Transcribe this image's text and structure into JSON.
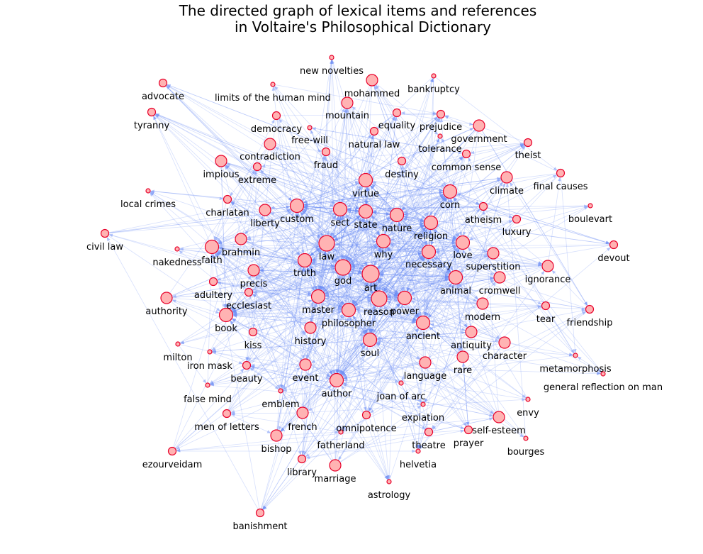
{
  "title": {
    "line1": "The directed graph of lexical items and references",
    "line2": "in Voltaire's Philosophical Dictionary"
  },
  "colors": {
    "node_fill": "#ffb3b3",
    "node_stroke": "#e8002a",
    "edge": "#6f8ff5",
    "label": "#000000",
    "background": "#ffffff"
  },
  "nodes": [
    {
      "id": "new novelties",
      "weight": 1
    },
    {
      "id": "mohammed",
      "weight": 3
    },
    {
      "id": "bankruptcy",
      "weight": 1
    },
    {
      "id": "advocate",
      "weight": 2
    },
    {
      "id": "limits of the human mind",
      "weight": 1
    },
    {
      "id": "mountain",
      "weight": 3
    },
    {
      "id": "tyranny",
      "weight": 2
    },
    {
      "id": "democracy",
      "weight": 2
    },
    {
      "id": "equality",
      "weight": 2
    },
    {
      "id": "prejudice",
      "weight": 2
    },
    {
      "id": "government",
      "weight": 3
    },
    {
      "id": "free-will",
      "weight": 1
    },
    {
      "id": "natural law",
      "weight": 2
    },
    {
      "id": "tolerance",
      "weight": 1
    },
    {
      "id": "theist",
      "weight": 2
    },
    {
      "id": "contradiction",
      "weight": 3
    },
    {
      "id": "fraud",
      "weight": 2
    },
    {
      "id": "common sense",
      "weight": 2
    },
    {
      "id": "impious",
      "weight": 3
    },
    {
      "id": "extreme",
      "weight": 2
    },
    {
      "id": "destiny",
      "weight": 2
    },
    {
      "id": "virtue",
      "weight": 4
    },
    {
      "id": "climate",
      "weight": 3
    },
    {
      "id": "final causes",
      "weight": 2
    },
    {
      "id": "local crimes",
      "weight": 1
    },
    {
      "id": "corn",
      "weight": 4
    },
    {
      "id": "charlatan",
      "weight": 2
    },
    {
      "id": "custom",
      "weight": 4
    },
    {
      "id": "sect",
      "weight": 4
    },
    {
      "id": "state",
      "weight": 4
    },
    {
      "id": "atheism",
      "weight": 2
    },
    {
      "id": "boulevart",
      "weight": 1
    },
    {
      "id": "liberty",
      "weight": 3
    },
    {
      "id": "nature",
      "weight": 4
    },
    {
      "id": "luxury",
      "weight": 2
    },
    {
      "id": "religion",
      "weight": 4
    },
    {
      "id": "civil law",
      "weight": 2
    },
    {
      "id": "brahmin",
      "weight": 3
    },
    {
      "id": "law",
      "weight": 5
    },
    {
      "id": "why",
      "weight": 4
    },
    {
      "id": "love",
      "weight": 4
    },
    {
      "id": "devout",
      "weight": 2
    },
    {
      "id": "nakedness",
      "weight": 1
    },
    {
      "id": "faith",
      "weight": 4
    },
    {
      "id": "necessary",
      "weight": 4
    },
    {
      "id": "truth",
      "weight": 4
    },
    {
      "id": "superstition",
      "weight": 3
    },
    {
      "id": "ignorance",
      "weight": 3
    },
    {
      "id": "god",
      "weight": 5
    },
    {
      "id": "precis",
      "weight": 3
    },
    {
      "id": "art",
      "weight": 6
    },
    {
      "id": "animal",
      "weight": 4
    },
    {
      "id": "cromwell",
      "weight": 3
    },
    {
      "id": "adultery",
      "weight": 2
    },
    {
      "id": "ecclesiast",
      "weight": 2
    },
    {
      "id": "authority",
      "weight": 3
    },
    {
      "id": "master",
      "weight": 4
    },
    {
      "id": "reason",
      "weight": 5
    },
    {
      "id": "power",
      "weight": 4
    },
    {
      "id": "tear",
      "weight": 2
    },
    {
      "id": "philosopher",
      "weight": 4
    },
    {
      "id": "modern",
      "weight": 3
    },
    {
      "id": "friendship",
      "weight": 2
    },
    {
      "id": "book",
      "weight": 4
    },
    {
      "id": "ancient",
      "weight": 4
    },
    {
      "id": "history",
      "weight": 3
    },
    {
      "id": "kiss",
      "weight": 2
    },
    {
      "id": "antiquity",
      "weight": 3
    },
    {
      "id": "milton",
      "weight": 1
    },
    {
      "id": "soul",
      "weight": 4
    },
    {
      "id": "character",
      "weight": 3
    },
    {
      "id": "iron mask",
      "weight": 1
    },
    {
      "id": "rare",
      "weight": 3
    },
    {
      "id": "metamorphosis",
      "weight": 1
    },
    {
      "id": "beauty",
      "weight": 2
    },
    {
      "id": "event",
      "weight": 3
    },
    {
      "id": "language",
      "weight": 3
    },
    {
      "id": "general reflection on man",
      "weight": 1
    },
    {
      "id": "author",
      "weight": 4
    },
    {
      "id": "joan of arc",
      "weight": 1
    },
    {
      "id": "false mind",
      "weight": 1
    },
    {
      "id": "emblem",
      "weight": 1
    },
    {
      "id": "envy",
      "weight": 1
    },
    {
      "id": "men of letters",
      "weight": 2
    },
    {
      "id": "french",
      "weight": 3
    },
    {
      "id": "expiation",
      "weight": 1
    },
    {
      "id": "self-esteem",
      "weight": 3
    },
    {
      "id": "omnipotence",
      "weight": 2
    },
    {
      "id": "bishop",
      "weight": 3
    },
    {
      "id": "theatre",
      "weight": 2
    },
    {
      "id": "prayer",
      "weight": 2
    },
    {
      "id": "bourges",
      "weight": 1
    },
    {
      "id": "fatherland",
      "weight": 1
    },
    {
      "id": "library",
      "weight": 2
    },
    {
      "id": "helvetia",
      "weight": 1
    },
    {
      "id": "marriage",
      "weight": 3
    },
    {
      "id": "ezourveidam",
      "weight": 2
    },
    {
      "id": "astrology",
      "weight": 1
    },
    {
      "id": "banishment",
      "weight": 2
    }
  ]
}
